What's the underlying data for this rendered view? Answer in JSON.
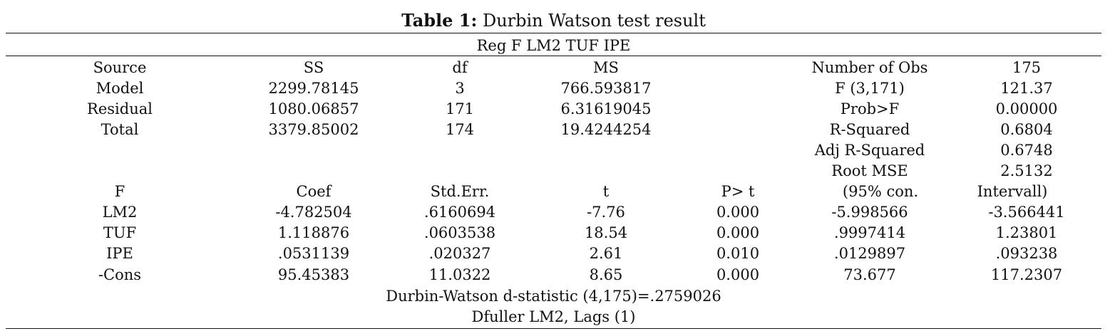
{
  "caption": {
    "label": "Table 1:",
    "text": "Durbin Watson test result"
  },
  "command": "Reg F LM2 TUF IPE",
  "anova": {
    "headers": [
      "Source",
      "SS",
      "df",
      "MS"
    ],
    "rows": [
      [
        "Model",
        "2299.78145",
        "3",
        "766.593817"
      ],
      [
        "Residual",
        "1080.06857",
        "171",
        "6.31619045"
      ],
      [
        "Total",
        "3379.85002",
        "174",
        "19.4244254"
      ]
    ]
  },
  "fit_stats": [
    [
      "Number of Obs",
      "175"
    ],
    [
      "F (3,171)",
      "121.37"
    ],
    [
      "Prob>F",
      "0.00000"
    ],
    [
      "R-Squared",
      "0.6804"
    ],
    [
      "Adj R-Squared",
      "0.6748"
    ],
    [
      "Root MSE",
      "2.5132"
    ]
  ],
  "coef_table": {
    "headers": [
      "F",
      "Coef",
      "Std.Err.",
      "t",
      "P> t",
      "(95% con.",
      "Intervall)"
    ],
    "rows": [
      [
        "LM2",
        "-4.782504",
        ".6160694",
        "-7.76",
        "0.000",
        "-5.998566",
        "-3.566441"
      ],
      [
        "TUF",
        "1.118876",
        ".0603538",
        "18.54",
        "0.000",
        ".9997414",
        "1.23801"
      ],
      [
        "IPE",
        ".0531139",
        ".020327",
        "2.61",
        "0.010",
        ".0129897",
        ".093238"
      ],
      [
        "-Cons",
        "95.45383",
        "11.0322",
        "8.65",
        "0.000",
        "73.677",
        "117.2307"
      ]
    ]
  },
  "footer": [
    "Durbin-Watson d-statistic (4,175)=.2759026",
    "Dfuller LM2, Lags (1)"
  ]
}
